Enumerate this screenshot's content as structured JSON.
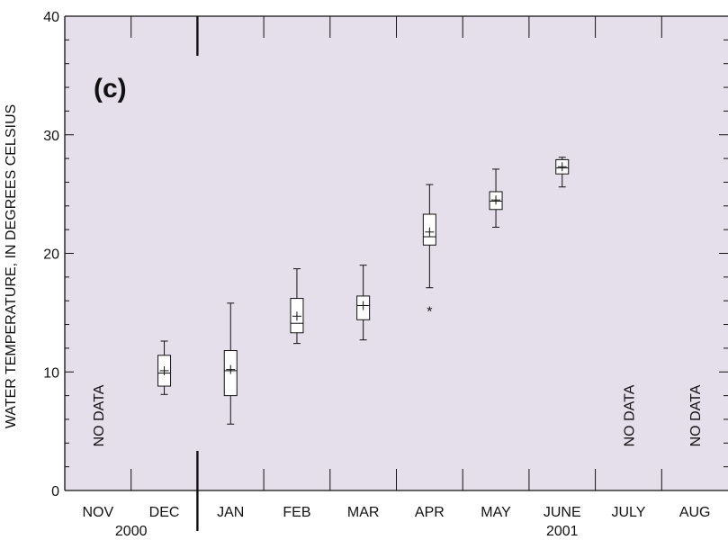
{
  "chart_data": {
    "type": "box",
    "panel_label": "(c)",
    "ylabel": "WATER TEMPERATURE, IN DEGREES CELSIUS",
    "xlabel": "",
    "ylim": [
      0,
      40
    ],
    "yticks": [
      "0",
      "10",
      "20",
      "30",
      "40"
    ],
    "categories": [
      "NOV",
      "DEC",
      "JAN",
      "FEB",
      "MAR",
      "APR",
      "MAY",
      "JUNE",
      "JULY",
      "AUG"
    ],
    "year_labels": [
      {
        "text": "2000",
        "under": "NOV-DEC"
      },
      {
        "text": "2001",
        "under": "JUNE"
      }
    ],
    "no_data_label": "NO DATA",
    "no_data_categories": [
      "NOV",
      "JULY",
      "AUG"
    ],
    "year_divider_after": "DEC",
    "background": "#e4dfea",
    "grid": false,
    "boxes": [
      {
        "category": "DEC",
        "whisker_low": 8.1,
        "q1": 8.8,
        "median": 9.9,
        "q3": 11.4,
        "whisker_high": 12.6,
        "mean": 10.1
      },
      {
        "category": "JAN",
        "whisker_low": 5.6,
        "q1": 8.0,
        "median": 10.1,
        "q3": 11.8,
        "whisker_high": 15.8,
        "mean": 10.2
      },
      {
        "category": "FEB",
        "whisker_low": 12.4,
        "q1": 13.3,
        "median": 14.1,
        "q3": 16.2,
        "whisker_high": 18.7,
        "mean": 14.7
      },
      {
        "category": "MAR",
        "whisker_low": 12.7,
        "q1": 14.4,
        "median": 15.6,
        "q3": 16.4,
        "whisker_high": 19.0,
        "mean": 15.6
      },
      {
        "category": "APR",
        "whisker_low": 17.1,
        "q1": 20.7,
        "median": 21.4,
        "q3": 23.3,
        "whisker_high": 25.8,
        "mean": 21.8,
        "outliers": [
          15.3
        ]
      },
      {
        "category": "MAY",
        "whisker_low": 22.2,
        "q1": 23.7,
        "median": 24.4,
        "q3": 25.2,
        "whisker_high": 27.1,
        "mean": 24.5
      },
      {
        "category": "JUNE",
        "whisker_low": 25.6,
        "q1": 26.7,
        "median": 27.2,
        "q3": 27.9,
        "whisker_high": 28.1,
        "mean": 27.3
      }
    ]
  }
}
